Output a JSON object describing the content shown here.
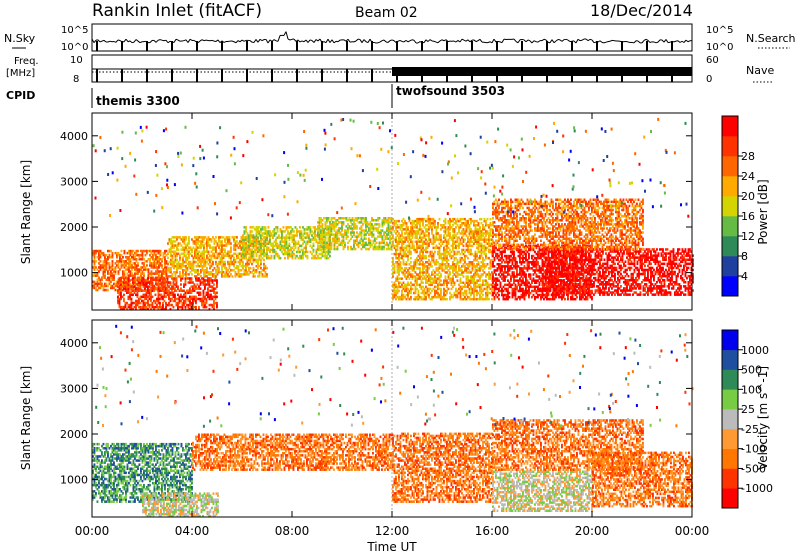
{
  "header": {
    "title": "Rankin Inlet (fitACF)",
    "beam": "Beam 02",
    "date": "18/Dec/2014"
  },
  "top_panel_labels": {
    "nsky": "N.Sky",
    "nsearch": "N.Search",
    "freq_line1": "Freq.",
    "freq_line2": "[MHz]",
    "nave": "Nave",
    "cpid": "CPID",
    "nsky_ticks": [
      "10^5",
      "10^0"
    ],
    "freq_ticks": [
      "10",
      "8"
    ],
    "nave_ticks": [
      "60",
      "0"
    ]
  },
  "cpid_segments": [
    {
      "name": "themis 3300",
      "start": "00:00",
      "end": "12:00"
    },
    {
      "name": "twofsound 3503",
      "start": "12:00",
      "end": "24:00"
    }
  ],
  "colors": {
    "power": [
      "#0000ff",
      "#2040a0",
      "#2e8b57",
      "#66bb44",
      "#d4d400",
      "#ffaa00",
      "#ff6600",
      "#ff3300",
      "#ff0000"
    ],
    "velocity": [
      "#ff0000",
      "#ff3300",
      "#ff7700",
      "#ff9933",
      "#bbbbbb",
      "#77cc44",
      "#2e8b57",
      "#1f4f9f",
      "#0000ee"
    ]
  },
  "chart_data": [
    {
      "type": "heatmap",
      "quantity": "Power",
      "ylabel": "Slant Range [km]",
      "xlabel": "",
      "y_ticks": [
        1000,
        2000,
        3000,
        4000
      ],
      "x_ticks": [
        "00:00",
        "04:00",
        "08:00",
        "12:00",
        "16:00",
        "20:00",
        "00:00"
      ],
      "colorbar_label": "Power [dB]",
      "colorbar_ticks": [
        4,
        8,
        12,
        16,
        20,
        24,
        28
      ],
      "xlim_hours": [
        0,
        24
      ],
      "ylim_km": [
        180,
        4500
      ],
      "bands": [
        {
          "start": 0.0,
          "end": 3.0,
          "lo": 600,
          "hi": 1500,
          "level": 6
        },
        {
          "start": 1.0,
          "end": 5.0,
          "lo": 180,
          "hi": 900,
          "level": 7
        },
        {
          "start": 3.0,
          "end": 7.0,
          "lo": 900,
          "hi": 1800,
          "level": 5
        },
        {
          "start": 6.0,
          "end": 9.5,
          "lo": 1300,
          "hi": 2000,
          "level": 4
        },
        {
          "start": 9.0,
          "end": 12.0,
          "lo": 1500,
          "hi": 2200,
          "level": 4
        },
        {
          "start": 12.0,
          "end": 16.0,
          "lo": 400,
          "hi": 2200,
          "level": 5
        },
        {
          "start": 16.0,
          "end": 20.0,
          "lo": 400,
          "hi": 1600,
          "level": 8
        },
        {
          "start": 18.0,
          "end": 24.0,
          "lo": 500,
          "hi": 1500,
          "level": 8
        },
        {
          "start": 16.0,
          "end": 22.0,
          "lo": 1500,
          "hi": 2600,
          "level": 6
        }
      ]
    },
    {
      "type": "heatmap",
      "quantity": "Velocity",
      "ylabel": "Slant Range [km]",
      "xlabel": "Time UT",
      "y_ticks": [
        1000,
        2000,
        3000,
        4000
      ],
      "x_ticks": [
        "00:00",
        "04:00",
        "08:00",
        "12:00",
        "16:00",
        "20:00",
        "00:00"
      ],
      "colorbar_label": "Velocity [m s^-1]",
      "colorbar_ticks": [
        "1000",
        "500",
        "100",
        "25",
        "-25",
        "-100",
        "-500",
        "-1000"
      ],
      "xlim_hours": [
        0,
        24
      ],
      "ylim_km": [
        180,
        4500
      ],
      "bands": [
        {
          "start": 0.0,
          "end": 4.0,
          "lo": 500,
          "hi": 1800,
          "level": 6
        },
        {
          "start": 2.0,
          "end": 5.0,
          "lo": 180,
          "hi": 700,
          "level": 4
        },
        {
          "start": 4.0,
          "end": 12.0,
          "lo": 1200,
          "hi": 2000,
          "level": 2
        },
        {
          "start": 12.0,
          "end": 16.0,
          "lo": 500,
          "hi": 2000,
          "level": 2
        },
        {
          "start": 16.0,
          "end": 20.0,
          "lo": 300,
          "hi": 1200,
          "level": 4
        },
        {
          "start": 16.0,
          "end": 22.0,
          "lo": 1200,
          "hi": 2300,
          "level": 2
        },
        {
          "start": 20.0,
          "end": 24.0,
          "lo": 400,
          "hi": 1600,
          "level": 2
        }
      ]
    }
  ]
}
